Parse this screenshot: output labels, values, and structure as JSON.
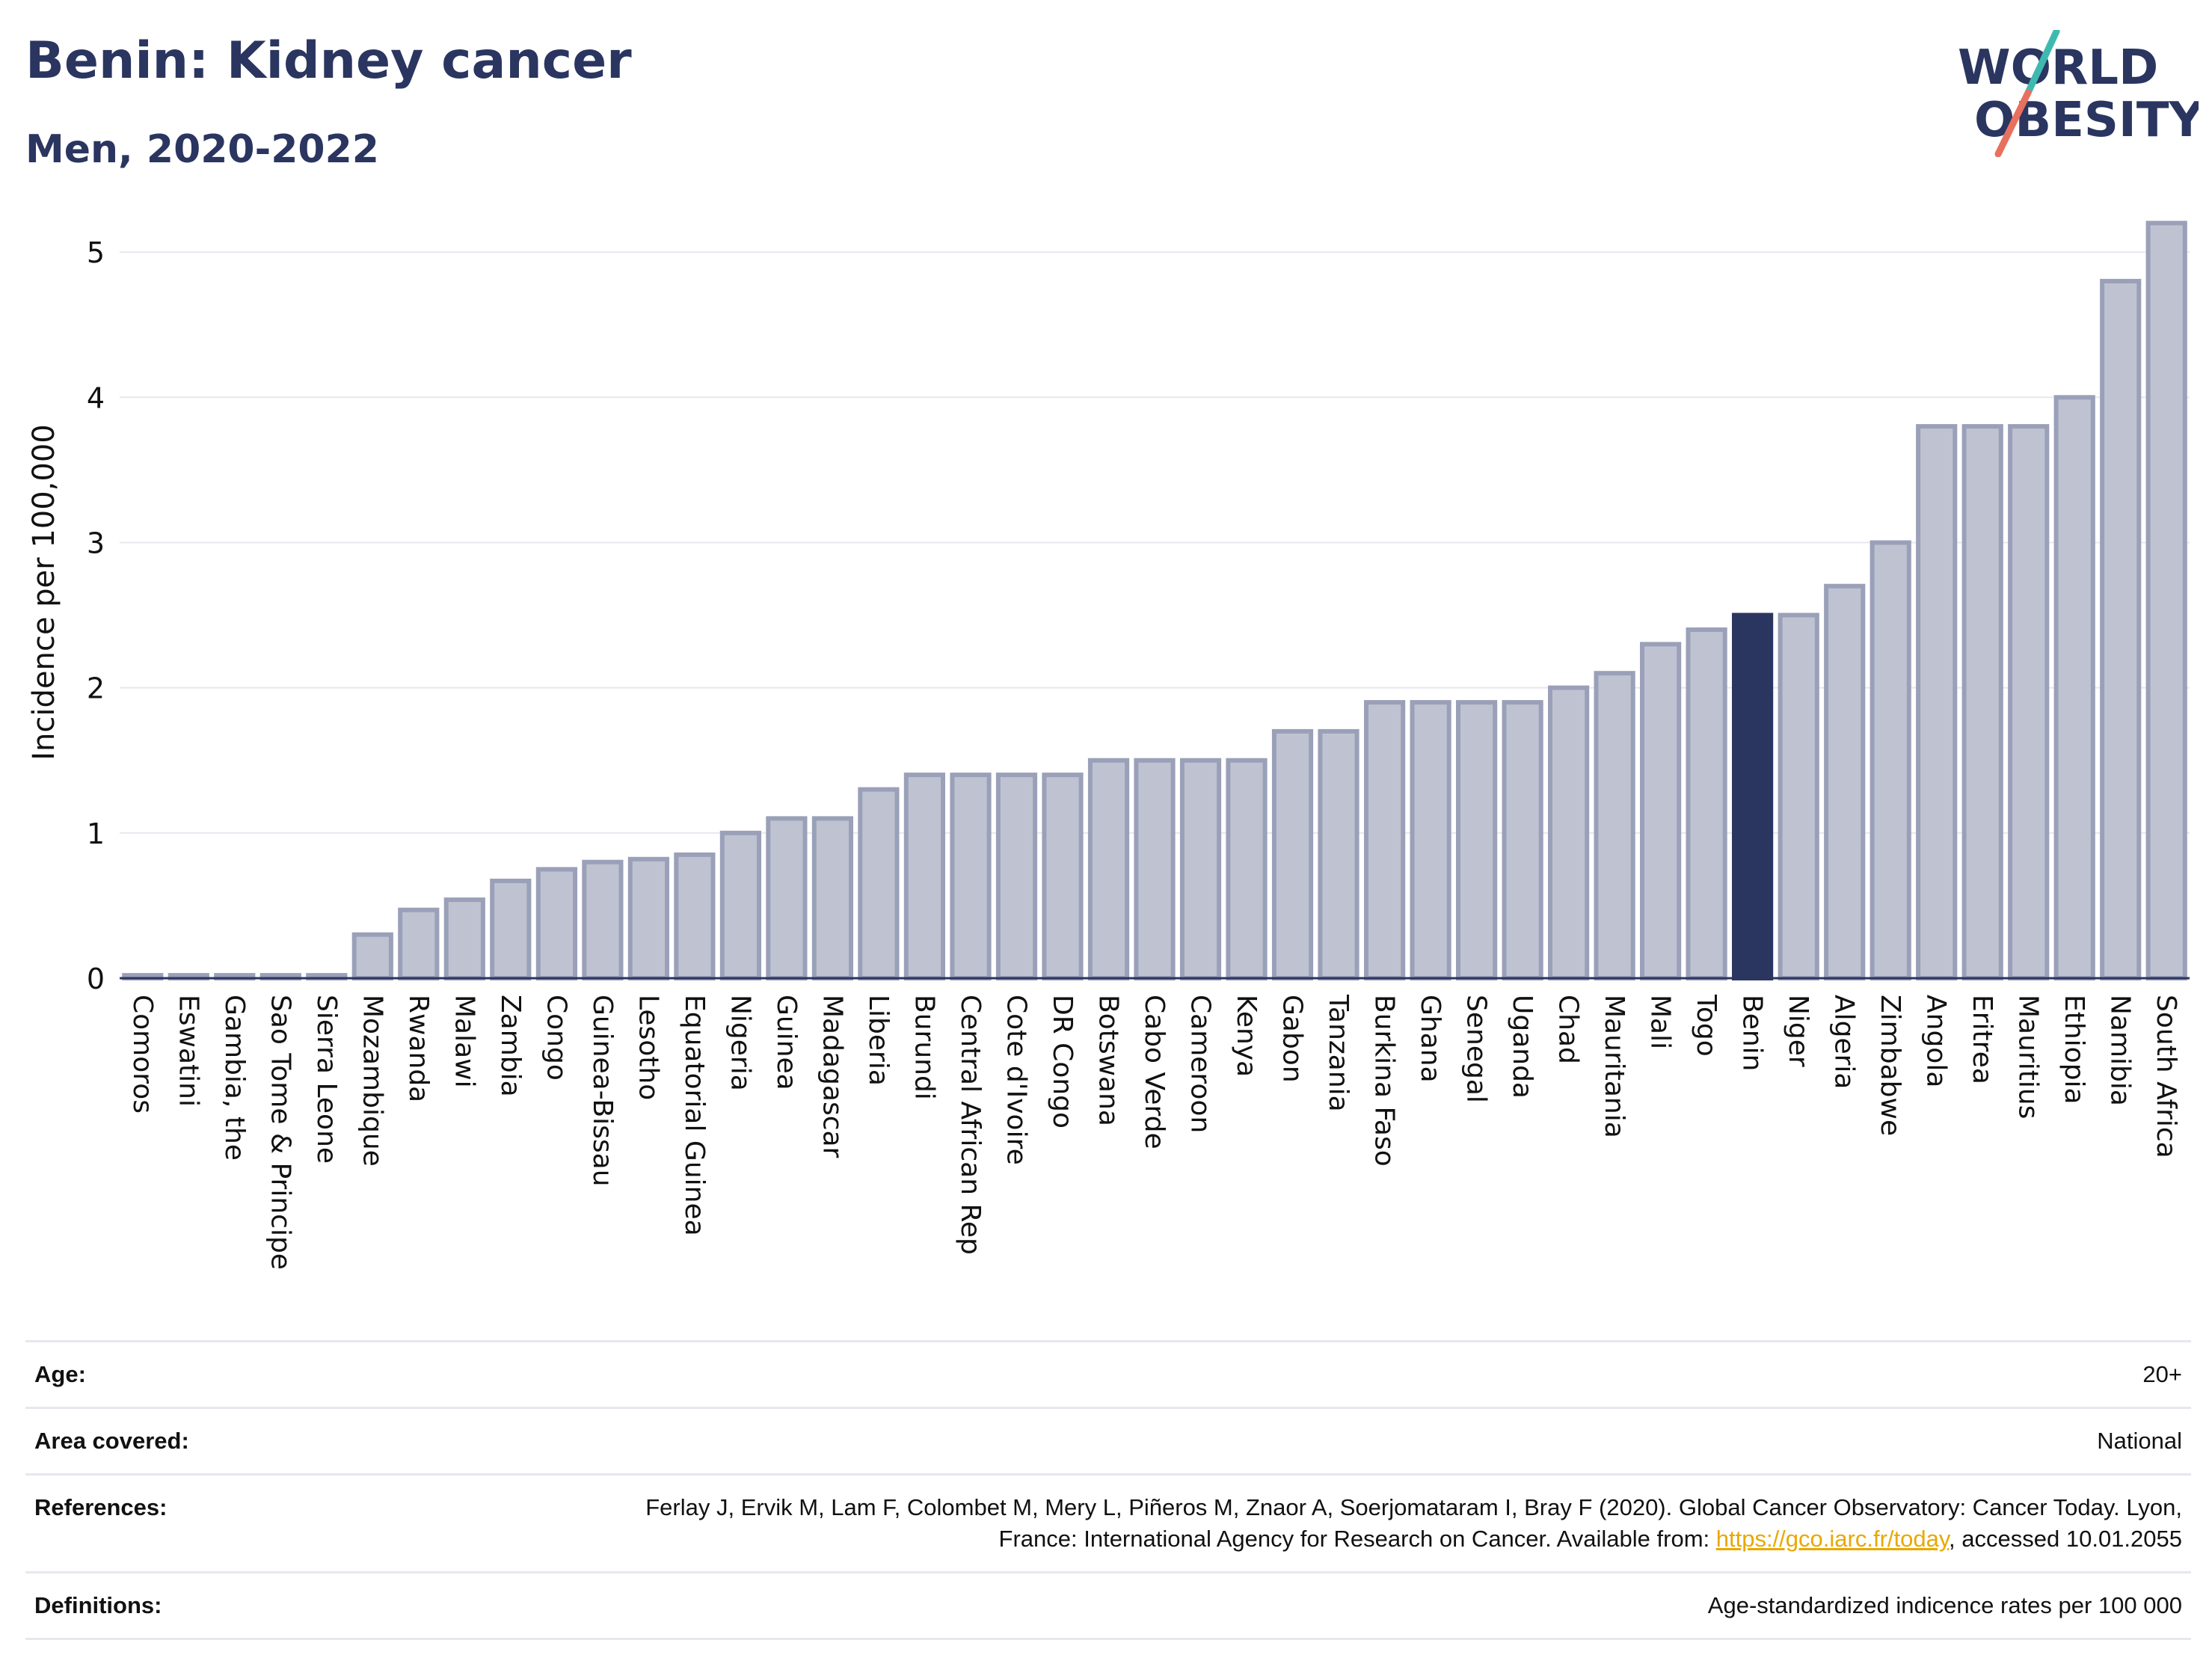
{
  "header": {
    "title": "Benin: Kidney cancer",
    "subtitle": "Men, 2020-2022"
  },
  "logo": {
    "line1": "WORLD",
    "line2": "OBESITY"
  },
  "colors": {
    "bar": "#bfc3d1",
    "bar_border": "#9aa0b8",
    "highlight": "#2a3560",
    "grid": "#e6e8ee",
    "axis": "#2a3560",
    "logo_teal": "#3fb9b0",
    "logo_coral": "#e8705f",
    "link": "#e8a800"
  },
  "chart_data": {
    "type": "bar",
    "ylabel": "Incidence per 100,000",
    "ylim": [
      0,
      5.5
    ],
    "yticks": [
      0,
      1,
      2,
      3,
      4,
      5
    ],
    "grid": true,
    "highlight": "Benin",
    "categories": [
      "Comoros",
      "Eswatini",
      "Gambia, the",
      "Sao Tome & Principe",
      "Sierra Leone",
      "Mozambique",
      "Rwanda",
      "Malawi",
      "Zambia",
      "Congo",
      "Guinea-Bissau",
      "Lesotho",
      "Equatorial Guinea",
      "Nigeria",
      "Guinea",
      "Madagascar",
      "Liberia",
      "Burundi",
      "Central African Rep",
      "Cote d'Ivoire",
      "DR Congo",
      "Botswana",
      "Cabo Verde",
      "Cameroon",
      "Kenya",
      "Gabon",
      "Tanzania",
      "Burkina Faso",
      "Ghana",
      "Senegal",
      "Uganda",
      "Chad",
      "Mauritania",
      "Mali",
      "Togo",
      "Benin",
      "Niger",
      "Algeria",
      "Zimbabwe",
      "Angola",
      "Eritrea",
      "Mauritius",
      "Ethiopia",
      "Namibia",
      "South Africa"
    ],
    "values": [
      0.02,
      0.02,
      0.02,
      0.02,
      0.02,
      0.3,
      0.47,
      0.54,
      0.67,
      0.75,
      0.8,
      0.82,
      0.85,
      1.0,
      1.1,
      1.1,
      1.3,
      1.4,
      1.4,
      1.4,
      1.4,
      1.5,
      1.5,
      1.5,
      1.5,
      1.7,
      1.7,
      1.9,
      1.9,
      1.9,
      1.9,
      2.0,
      2.1,
      2.3,
      2.4,
      2.5,
      2.5,
      2.7,
      3.0,
      3.8,
      3.8,
      3.8,
      4.0,
      4.8,
      5.2
    ]
  },
  "info": {
    "age_label": "Age:",
    "age_value": "20+",
    "area_label": "Area covered:",
    "area_value": "National",
    "references_label": "References:",
    "references_text_1": "Ferlay J, Ervik M, Lam F, Colombet M, Mery L, Piñeros M, Znaor A, Soerjomataram I, Bray F (2020). Global Cancer Observatory: Cancer Today. Lyon, France: International Agency for Research on Cancer. Available from: ",
    "references_link": "https://gco.iarc.fr/today",
    "references_text_2": ", accessed 10.01.2055",
    "definitions_label": "Definitions:",
    "definitions_value": "Age-standardized indicence rates per 100 000"
  }
}
